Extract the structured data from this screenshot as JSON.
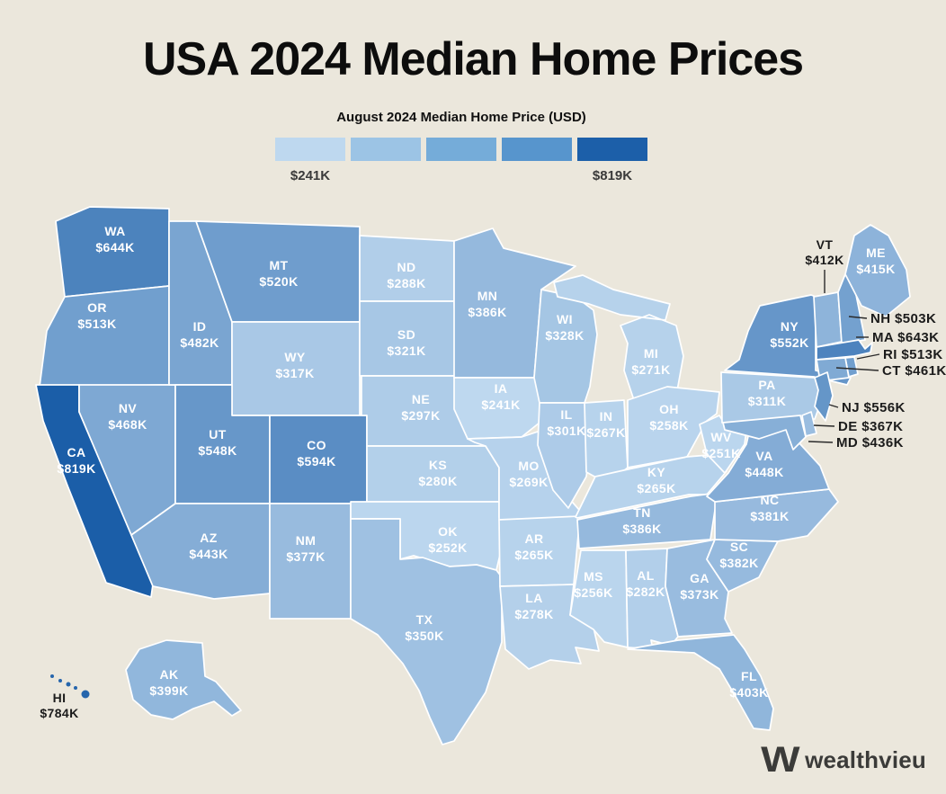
{
  "title": "USA 2024 Median Home Prices",
  "legend": {
    "title": "August 2024 Median Home Price (USD)",
    "min_label": "$241K",
    "max_label": "$819K",
    "colors": [
      "#BED8EF",
      "#9CC4E5",
      "#75ACD9",
      "#5795CD",
      "#1C5FA9"
    ]
  },
  "brand": {
    "name": "wealthvieu",
    "color": "#3B3B39"
  },
  "chart_data": {
    "type": "heatmap",
    "subtype": "us-state-choropleth",
    "title": "USA 2024 Median Home Prices",
    "legend_title": "August 2024 Median Home Price (USD)",
    "unit": "USD thousands",
    "color_scale": {
      "min_value": 241,
      "max_value": 819,
      "min_color": "#BED8EF",
      "max_color": "#1B5EA8",
      "legend_min_label": "$241K",
      "legend_max_label": "$819K"
    },
    "states": [
      {
        "code": "WA",
        "value": 644,
        "label": "$644K"
      },
      {
        "code": "OR",
        "value": 513,
        "label": "$513K"
      },
      {
        "code": "CA",
        "value": 819,
        "label": "$819K"
      },
      {
        "code": "NV",
        "value": 468,
        "label": "$468K"
      },
      {
        "code": "ID",
        "value": 482,
        "label": "$482K"
      },
      {
        "code": "MT",
        "value": 520,
        "label": "$520K"
      },
      {
        "code": "WY",
        "value": 317,
        "label": "$317K"
      },
      {
        "code": "UT",
        "value": 548,
        "label": "$548K"
      },
      {
        "code": "CO",
        "value": 594,
        "label": "$594K"
      },
      {
        "code": "AZ",
        "value": 443,
        "label": "$443K"
      },
      {
        "code": "NM",
        "value": 377,
        "label": "$377K"
      },
      {
        "code": "ND",
        "value": 288,
        "label": "$288K"
      },
      {
        "code": "SD",
        "value": 321,
        "label": "$321K"
      },
      {
        "code": "NE",
        "value": 297,
        "label": "$297K"
      },
      {
        "code": "KS",
        "value": 280,
        "label": "$280K"
      },
      {
        "code": "OK",
        "value": 252,
        "label": "$252K"
      },
      {
        "code": "TX",
        "value": 350,
        "label": "$350K"
      },
      {
        "code": "MN",
        "value": 386,
        "label": "$386K"
      },
      {
        "code": "IA",
        "value": 241,
        "label": "$241K"
      },
      {
        "code": "MO",
        "value": 269,
        "label": "$269K"
      },
      {
        "code": "AR",
        "value": 265,
        "label": "$265K"
      },
      {
        "code": "LA",
        "value": 278,
        "label": "$278K"
      },
      {
        "code": "WI",
        "value": 328,
        "label": "$328K"
      },
      {
        "code": "IL",
        "value": 301,
        "label": "$301K"
      },
      {
        "code": "MS",
        "value": 256,
        "label": "$256K"
      },
      {
        "code": "MI",
        "value": 271,
        "label": "$271K"
      },
      {
        "code": "IN",
        "value": 267,
        "label": "$267K"
      },
      {
        "code": "OH",
        "value": 258,
        "label": "$258K"
      },
      {
        "code": "KY",
        "value": 265,
        "label": "$265K"
      },
      {
        "code": "TN",
        "value": 386,
        "label": "$386K"
      },
      {
        "code": "AL",
        "value": 282,
        "label": "$282K"
      },
      {
        "code": "GA",
        "value": 373,
        "label": "$373K"
      },
      {
        "code": "FL",
        "value": 403,
        "label": "$403K"
      },
      {
        "code": "SC",
        "value": 382,
        "label": "$382K"
      },
      {
        "code": "NC",
        "value": 381,
        "label": "$381K"
      },
      {
        "code": "VA",
        "value": 448,
        "label": "$448K"
      },
      {
        "code": "WV",
        "value": 251,
        "label": "$251K"
      },
      {
        "code": "PA",
        "value": 311,
        "label": "$311K"
      },
      {
        "code": "NY",
        "value": 552,
        "label": "$552K"
      },
      {
        "code": "VT",
        "value": 412,
        "label": "$412K"
      },
      {
        "code": "NH",
        "value": 503,
        "label": "$503K"
      },
      {
        "code": "ME",
        "value": 415,
        "label": "$415K"
      },
      {
        "code": "MA",
        "value": 643,
        "label": "$643K"
      },
      {
        "code": "RI",
        "value": 513,
        "label": "$513K"
      },
      {
        "code": "CT",
        "value": 461,
        "label": "$461K"
      },
      {
        "code": "NJ",
        "value": 556,
        "label": "$556K"
      },
      {
        "code": "DE",
        "value": 367,
        "label": "$367K"
      },
      {
        "code": "MD",
        "value": 436,
        "label": "$436K"
      },
      {
        "code": "AK",
        "value": 399,
        "label": "$399K"
      },
      {
        "code": "HI",
        "value": 784,
        "label": "$784K"
      }
    ]
  }
}
